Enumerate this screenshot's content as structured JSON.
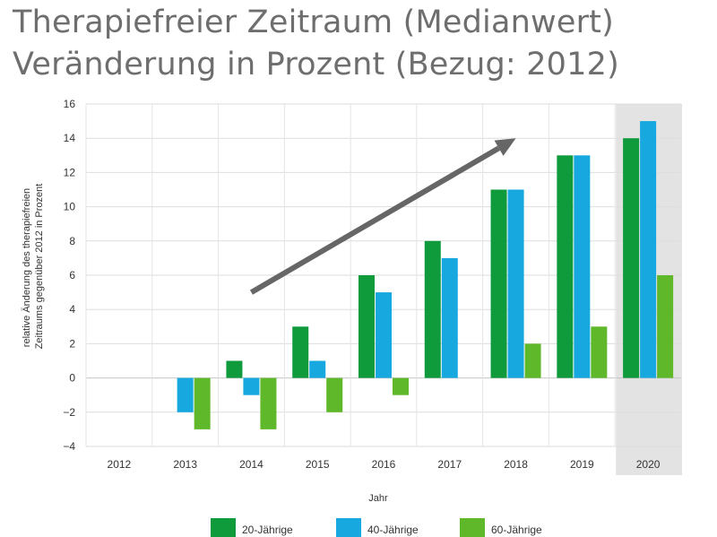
{
  "header": {
    "title_line1": "Therapiefreier Zeitraum (Medianwert)",
    "title_line2": "Veränderung in Prozent (Bezug: 2012)"
  },
  "chart_data": {
    "type": "bar",
    "categories": [
      "2012",
      "2013",
      "2014",
      "2015",
      "2016",
      "2017",
      "2018",
      "2019",
      "2020"
    ],
    "series": [
      {
        "name": "20-Jährige",
        "color": "#0f9b3c",
        "values": [
          0,
          0,
          1,
          3,
          6,
          8,
          11,
          13,
          14
        ]
      },
      {
        "name": "40-Jährige",
        "color": "#16a8de",
        "values": [
          0,
          -2,
          -1,
          1,
          5,
          7,
          11,
          13,
          15
        ]
      },
      {
        "name": "60-Jährige",
        "color": "#5fb829",
        "values": [
          0,
          -3,
          -3,
          -2,
          -1,
          0,
          2,
          3,
          6
        ]
      }
    ],
    "xlabel": "Jahr",
    "ylabel_line1": "relative Änderung des therapiefreien",
    "ylabel_line2": "Zeitraums gegenüber 2012 in Prozent",
    "ylim": [
      -4,
      16
    ],
    "yticks": [
      -4,
      -2,
      0,
      2,
      4,
      6,
      8,
      10,
      12,
      14,
      16
    ],
    "grid": true,
    "highlight_category": "2020",
    "highlight_color": "#e3e3e3",
    "trend_arrow": {
      "from": {
        "x": "2014",
        "y": 5
      },
      "to": {
        "x": "2018",
        "y": 14
      },
      "color": "#666666"
    },
    "legend_position": "bottom"
  }
}
